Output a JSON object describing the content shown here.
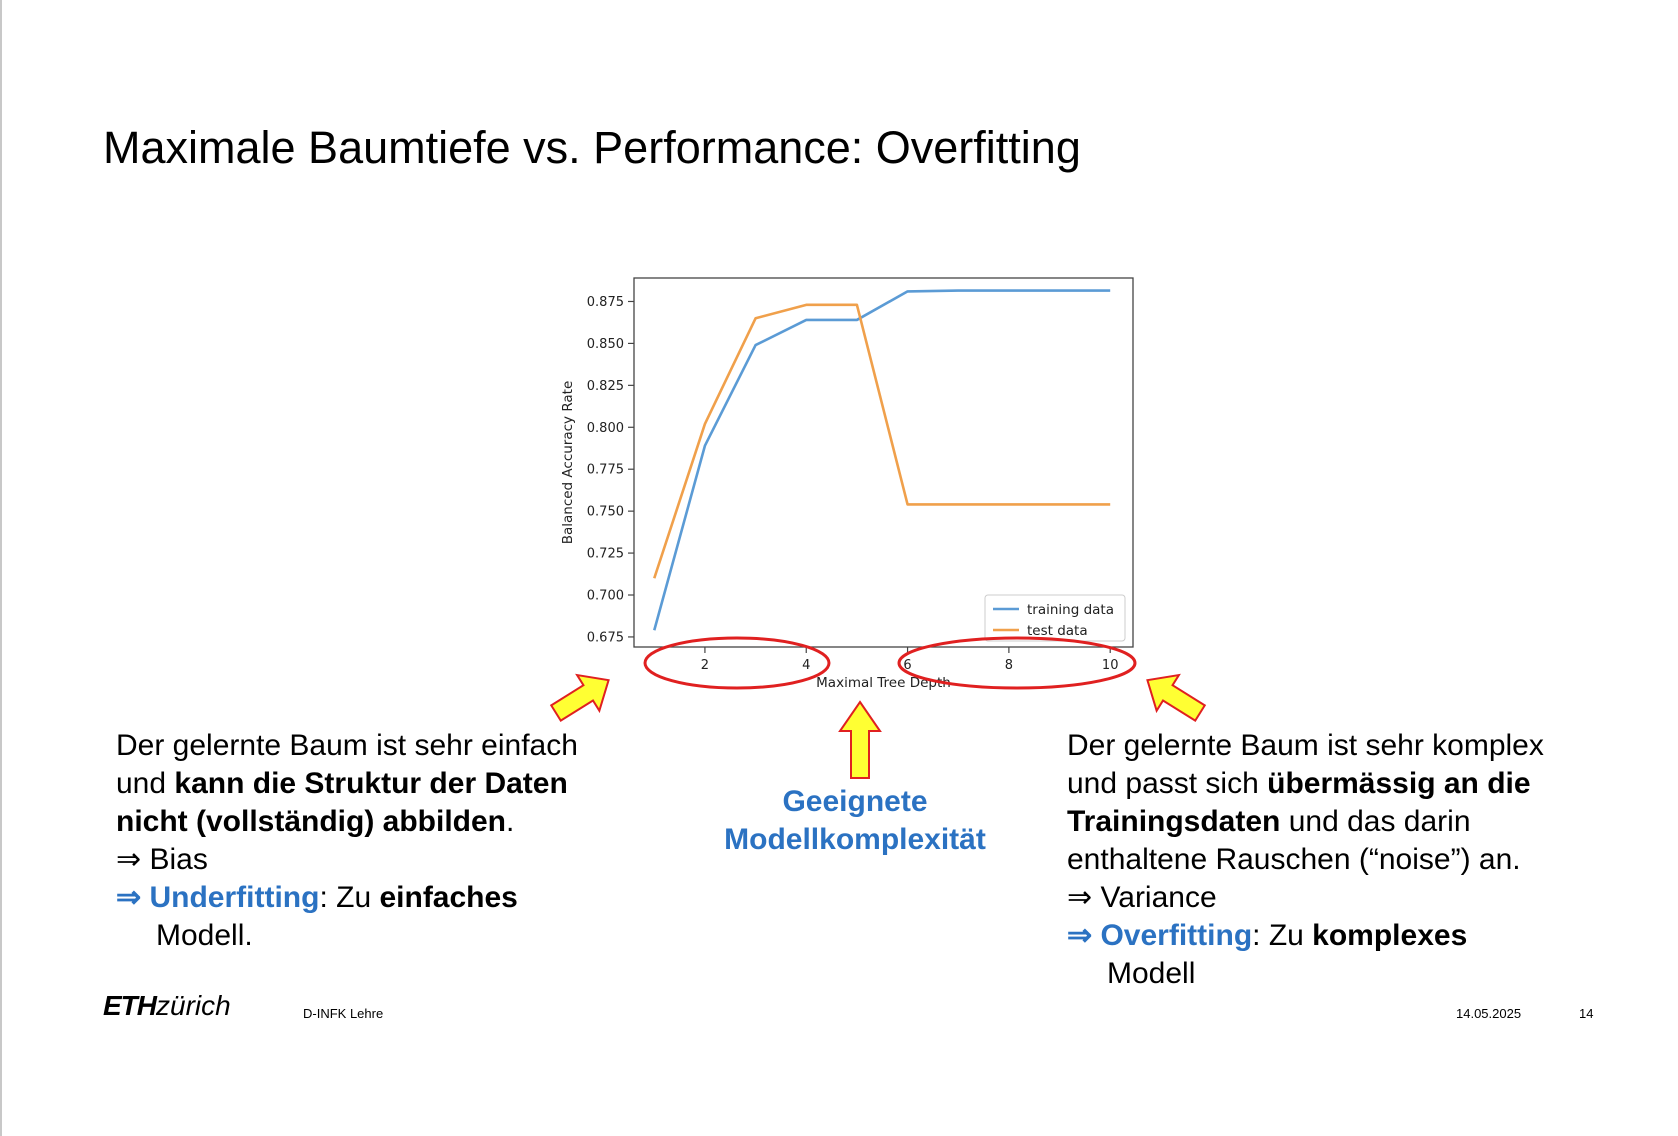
{
  "slide": {
    "title": "Maximale Baumtiefe vs. Performance: Overfitting",
    "center_label_line1": "Geeignete",
    "center_label_line2": "Modellkomplexität",
    "left": {
      "line1": "Der gelernte Baum ist sehr einfach",
      "line2_pre": "und ",
      "line2_bold": "kann die Struktur der Daten",
      "line3_bold": "nicht (vollständig) abbilden",
      "line3_post": ".",
      "line4_arrow": "⇒",
      "line4_text": " Bias",
      "line5_arrow": "⇒",
      "line5_blue": " Underfitting",
      "line5_mid": ": Zu ",
      "line5_bold": "einfaches",
      "line6": "Modell."
    },
    "right": {
      "line1": "Der gelernte Baum ist sehr komplex",
      "line2_pre": "und passt sich ",
      "line2_bold": "übermässig an die",
      "line3_bold": "Trainingsdaten",
      "line3_post": " und das darin",
      "line4": "enthaltene Rauschen (“noise”) an.",
      "line5_arrow": "⇒",
      "line5_text": " Variance",
      "line6_arrow": "⇒",
      "line6_blue": " Overfitting",
      "line6_mid": ": Zu ",
      "line6_bold": "komplexes",
      "line7": "Modell"
    },
    "footer": {
      "logo_eth": "ETH",
      "logo_zurich": "zürich",
      "department": "D-INFK Lehre",
      "date": "14.05.2025",
      "page": "14"
    },
    "colors": {
      "highlight_blue": "#2b72c2",
      "circle_red": "#e02020",
      "arrow_yellow": "#ffff33",
      "arrow_outline": "#e02020"
    }
  },
  "chart_data": {
    "type": "line",
    "x": [
      1,
      2,
      3,
      4,
      5,
      6,
      7,
      8,
      9,
      10
    ],
    "series": [
      {
        "name": "training data",
        "color": "#5b9bd5",
        "values": [
          0.679,
          0.789,
          0.849,
          0.864,
          0.864,
          0.881,
          0.8815,
          0.8815,
          0.8815,
          0.8815
        ]
      },
      {
        "name": "test data",
        "color": "#f0a04b",
        "values": [
          0.71,
          0.802,
          0.865,
          0.873,
          0.873,
          0.754,
          0.754,
          0.754,
          0.754,
          0.754
        ]
      }
    ],
    "xlabel": "Maximal Tree Depth",
    "ylabel": "Balanced Accuracy Rate",
    "xticks": [
      "2",
      "4",
      "6",
      "8",
      "10"
    ],
    "yticks": [
      "0.675",
      "0.700",
      "0.725",
      "0.750",
      "0.775",
      "0.800",
      "0.825",
      "0.850",
      "0.875"
    ],
    "xlim": [
      0.6,
      10.45
    ],
    "ylim": [
      0.669,
      0.889
    ],
    "grid": false,
    "legend": "bottom-right"
  }
}
